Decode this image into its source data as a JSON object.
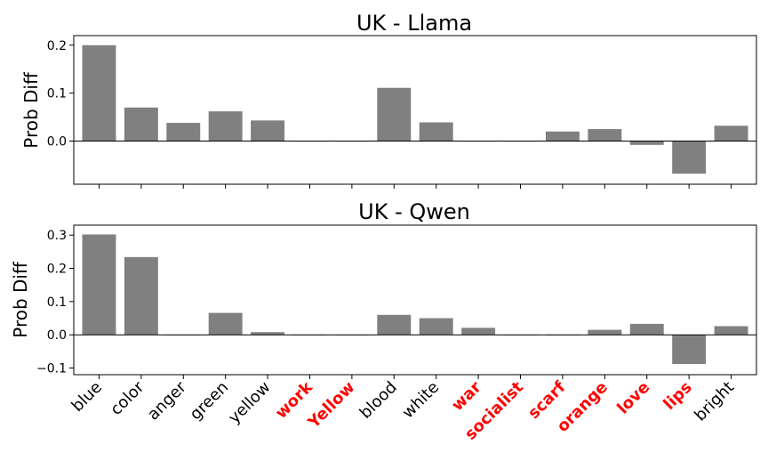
{
  "chart_data": [
    {
      "type": "bar",
      "title": "UK - Llama",
      "ylabel": "Prob Diff",
      "xlabel": "",
      "ylim": [
        -0.09,
        0.22
      ],
      "yticks": [
        0.0,
        0.1,
        0.2
      ],
      "ytick_labels": [
        "0.0",
        "0.1",
        "0.2"
      ],
      "grid": false,
      "bar_color": "#808080",
      "categories": [
        "blue",
        "color",
        "anger",
        "green",
        "yellow",
        "work",
        "Yellow",
        "blood",
        "white",
        "war",
        "socialist",
        "scarf",
        "orange",
        "love",
        "lips",
        "bright"
      ],
      "values": [
        0.2,
        0.07,
        0.038,
        0.062,
        0.043,
        0.0,
        0.0,
        0.111,
        0.039,
        0.0,
        0.0,
        0.02,
        0.025,
        -0.008,
        -0.068,
        0.032
      ]
    },
    {
      "type": "bar",
      "title": "UK - Qwen",
      "ylabel": "Prob Diff",
      "xlabel": "",
      "ylim": [
        -0.12,
        0.33
      ],
      "yticks": [
        -0.1,
        0.0,
        0.1,
        0.2,
        0.3
      ],
      "ytick_labels": [
        "−0.1",
        "0.0",
        "0.1",
        "0.2",
        "0.3"
      ],
      "grid": false,
      "bar_color": "#808080",
      "categories": [
        "blue",
        "color",
        "anger",
        "green",
        "yellow",
        "work",
        "Yellow",
        "blood",
        "white",
        "war",
        "socialist",
        "scarf",
        "orange",
        "love",
        "lips",
        "bright"
      ],
      "values": [
        0.302,
        0.234,
        0.0,
        0.066,
        0.008,
        0.0,
        0.0,
        0.06,
        0.05,
        0.021,
        0.0,
        0.0,
        0.015,
        0.033,
        -0.088,
        0.026
      ]
    }
  ],
  "x_axis": {
    "labels": [
      "blue",
      "color",
      "anger",
      "green",
      "yellow",
      "work",
      "Yellow",
      "blood",
      "white",
      "war",
      "socialist",
      "scarf",
      "orange",
      "love",
      "lips",
      "bright"
    ],
    "highlighted": [
      "work",
      "Yellow",
      "war",
      "socialist",
      "scarf",
      "orange",
      "love",
      "lips"
    ],
    "highlight_color": "#ff0000",
    "normal_color": "#000000"
  }
}
